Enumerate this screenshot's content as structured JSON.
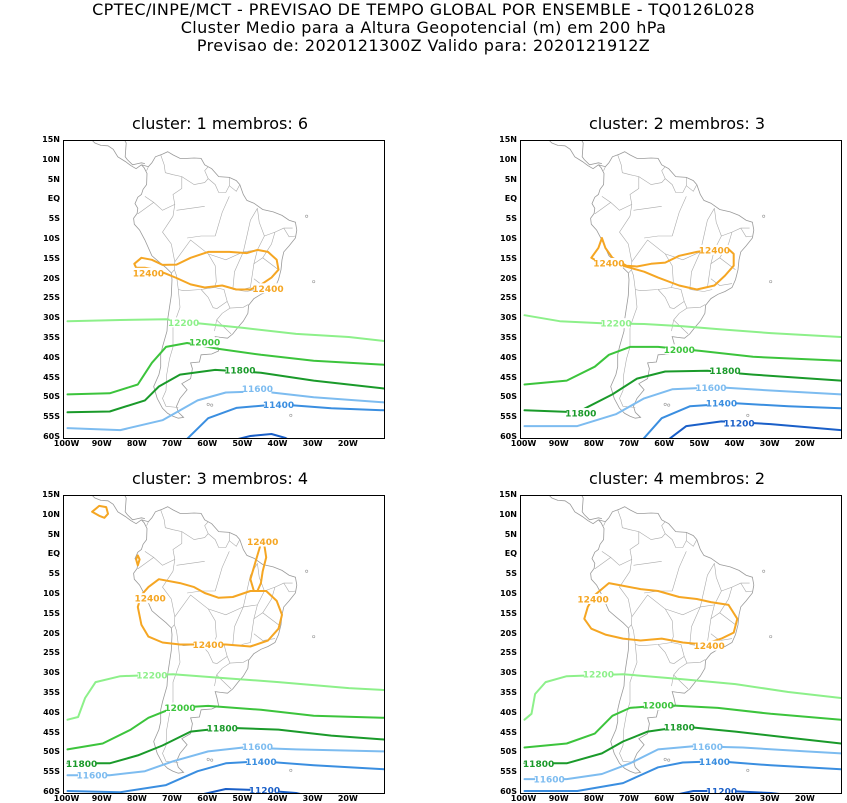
{
  "header": {
    "line1": "CPTEC/INPE/MCT - PREVISAO DE TEMPO GLOBAL POR ENSEMBLE - TQ0126L028",
    "line2": "Cluster Medio para a Altura Geopotencial (m) em 200 hPa",
    "line3": "Previsao de: 2020121300Z    Valido para: 2020121912Z"
  },
  "axes": {
    "lat_labels": [
      "15N",
      "10N",
      "5N",
      "EQ",
      "5S",
      "10S",
      "15S",
      "20S",
      "25S",
      "30S",
      "35S",
      "40S",
      "45S",
      "50S",
      "55S",
      "60S"
    ],
    "lon_labels": [
      "100W",
      "90W",
      "80W",
      "70W",
      "60W",
      "50W",
      "40W",
      "30W",
      "20W"
    ]
  },
  "colors": {
    "c12400": "#f5a623",
    "c12200": "#8df08a",
    "c12000": "#3cc43c",
    "c11800": "#1a9a2a",
    "c11600": "#7dbcf0",
    "c11400": "#3a8ee0",
    "c11200": "#1a5fc8",
    "coast": "#9a9a9a"
  },
  "panels": [
    {
      "title": "cluster: 1   membros: 6",
      "labels": {
        "c12400a": "12400",
        "c12400b": "12400",
        "c12200": "12200",
        "c12000": "12000",
        "c11800": "11800",
        "c11600": "11600",
        "c11400": "11400"
      }
    },
    {
      "title": "cluster: 2   membros: 3",
      "labels": {
        "c12400a": "12400",
        "c12400b": "12400",
        "c12200": "12200",
        "c12000": "12000",
        "c11800": "11800",
        "c11800b": "11800",
        "c11600": "11600",
        "c11400": "11400",
        "c11200": "11200"
      }
    },
    {
      "title": "cluster: 3   membros: 4",
      "labels": {
        "c12400a": "12400",
        "c12400b": "12400",
        "c12400c": "12400",
        "c12200": "12200",
        "c12000": "12000",
        "c11800": "11800",
        "c11800b": "11800",
        "c11600": "11600",
        "c11600b": "11600",
        "c11400": "11400",
        "c11200": "11200"
      }
    },
    {
      "title": "cluster: 4   membros: 2",
      "labels": {
        "c12400a": "12400",
        "c12400b": "12400",
        "c12200": "12200",
        "c12000": "12000",
        "c11800": "11800",
        "c11800b": "11800",
        "c11600": "11600",
        "c11600b": "11600",
        "c11400": "11400",
        "c11200": "11200"
      }
    }
  ]
}
